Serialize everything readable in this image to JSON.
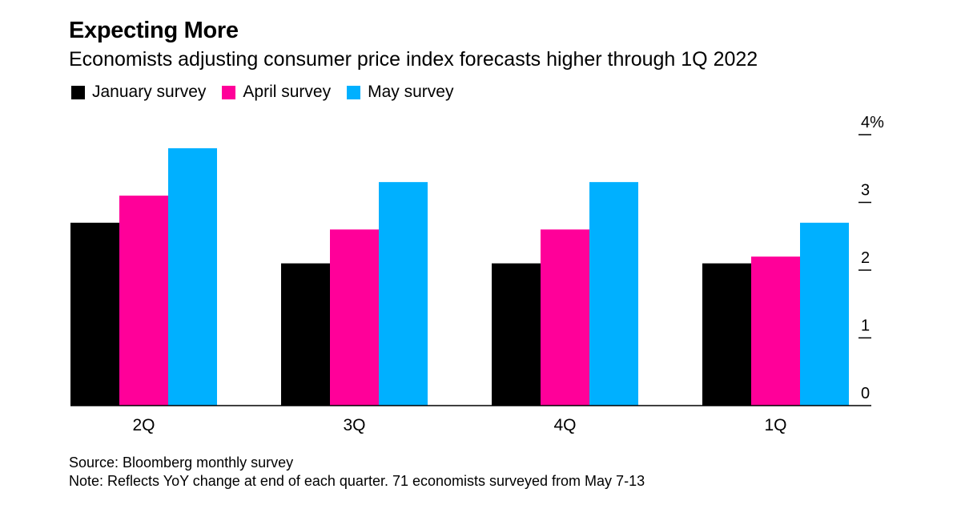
{
  "chart_data": {
    "type": "bar",
    "title": "Expecting More",
    "subtitle": "Economists adjusting consumer price index forecasts higher through 1Q 2022",
    "categories": [
      "2Q",
      "3Q",
      "4Q",
      "1Q"
    ],
    "series": [
      {
        "name": "January survey",
        "color": "#000000",
        "values": [
          2.7,
          2.1,
          2.1,
          2.1
        ]
      },
      {
        "name": "April survey",
        "color": "#ff0099",
        "values": [
          3.1,
          2.6,
          2.6,
          2.2
        ]
      },
      {
        "name": "May survey",
        "color": "#00b0ff",
        "values": [
          3.8,
          3.3,
          3.3,
          2.7
        ]
      }
    ],
    "ylim": [
      0,
      4
    ],
    "yticks": [
      0,
      1,
      2,
      3,
      4
    ],
    "ytick_labels": [
      "0",
      "1",
      "2",
      "3",
      "4%"
    ],
    "y_axis_side": "right",
    "grid": false,
    "legend_position": "top-left",
    "source": "Source: Bloomberg monthly survey",
    "note": "Note: Reflects YoY change at end of each quarter. 71 economists surveyed from May 7-13"
  }
}
